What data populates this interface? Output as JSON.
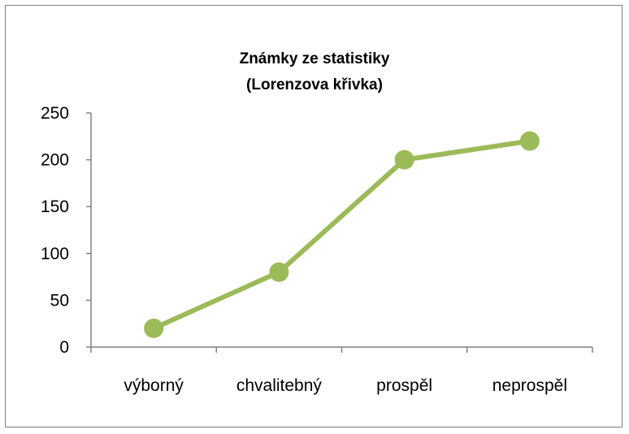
{
  "chart_data": {
    "type": "line",
    "title": "Známky ze statistiky",
    "subtitle": "(Lorenzova křivka)",
    "categories": [
      "výborný",
      "chvalitebný",
      "prospěl",
      "neprospěl"
    ],
    "series": [
      {
        "values": [
          20,
          80,
          200,
          220
        ]
      }
    ],
    "ylim": [
      0,
      250
    ],
    "yticks": [
      "0",
      "50",
      "100",
      "150",
      "200",
      "250"
    ],
    "grid": false,
    "legend": "none",
    "line_color": "#9bbb59",
    "axis_color": "#808080"
  }
}
